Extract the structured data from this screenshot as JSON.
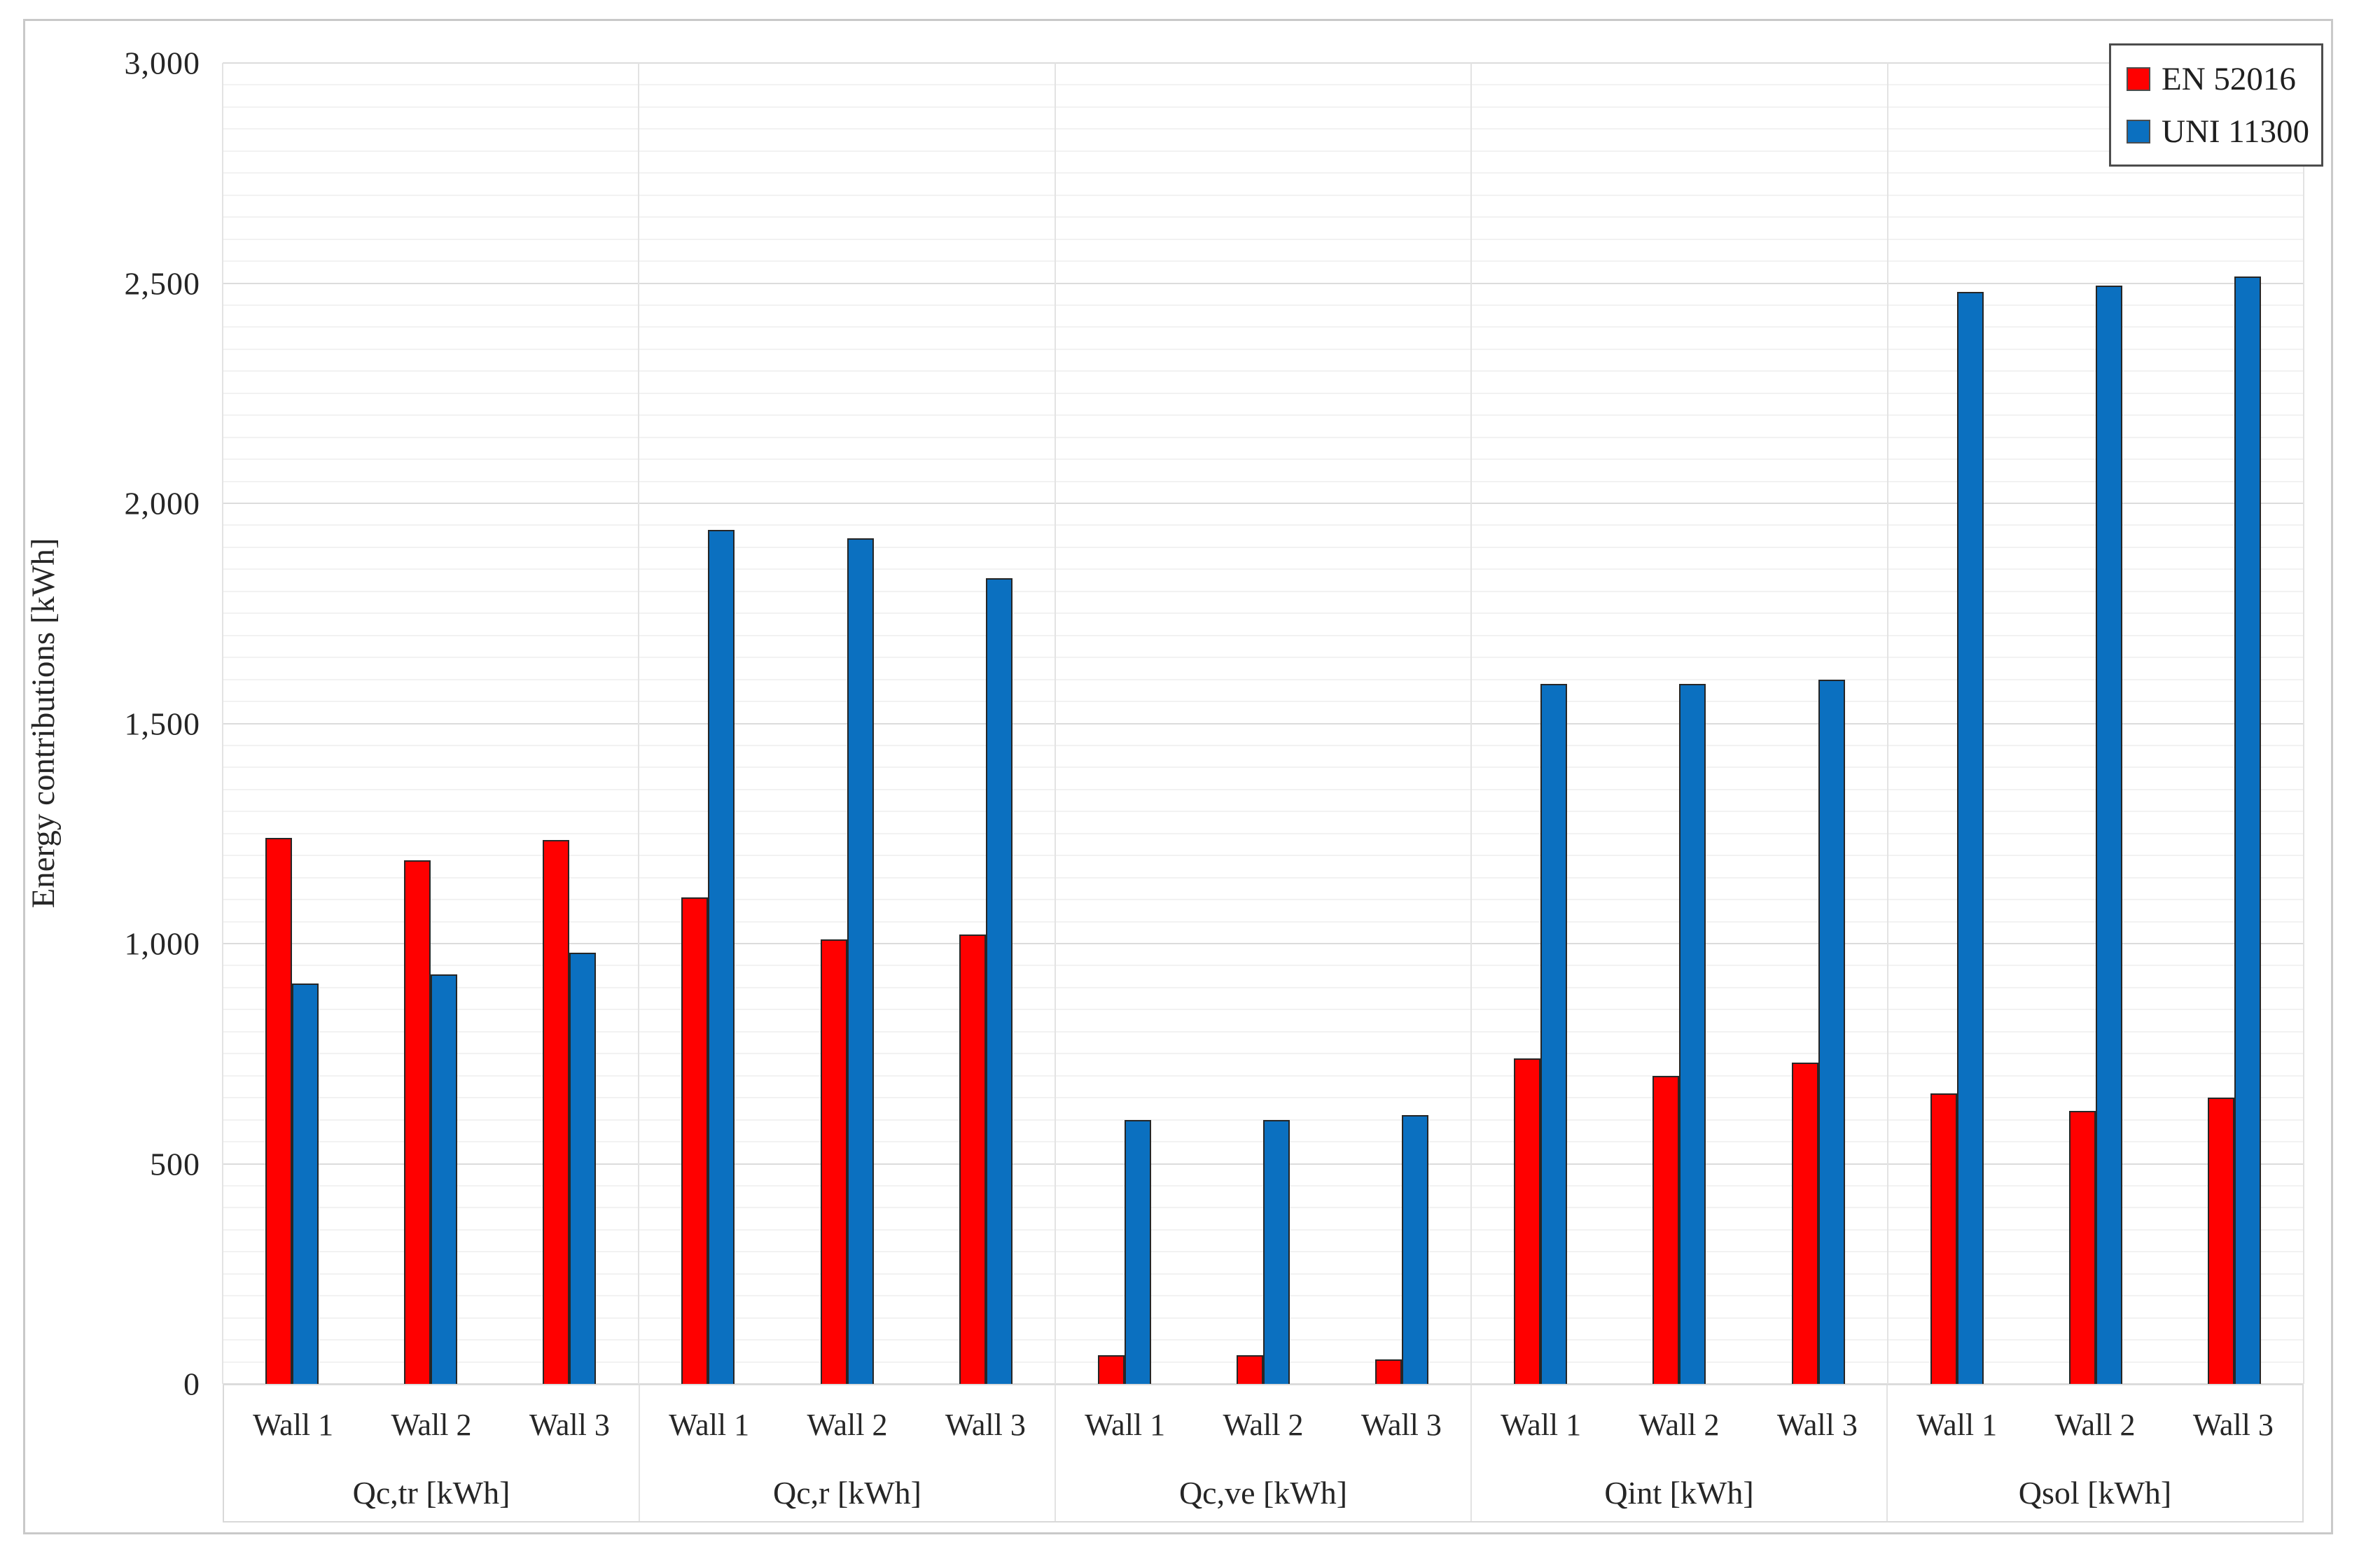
{
  "chart_data": {
    "type": "bar",
    "title": "",
    "ylabel": "Energy contributions [kWh]",
    "ylim": [
      0,
      3000
    ],
    "y_major_step": 500,
    "y_minor_step": 50,
    "y_tick_labels": [
      "0",
      "500",
      "1,000",
      "1,500",
      "2,000",
      "2,500",
      "3,000"
    ],
    "grid": "horizontal; faint minor lines every 50 kWh, light major lines every 500 kWh; faint vertical separators between category groups",
    "legend_position": "top-right",
    "categories": [
      "Qc,tr [kWh]",
      "Qc,r [kWh]",
      "Qc,ve [kWh]",
      "Qint [kWh]",
      "Qsol [kWh]"
    ],
    "walls": [
      "Wall 1",
      "Wall 2",
      "Wall 3"
    ],
    "series": [
      {
        "name": "EN 52016",
        "color": "#ff0000",
        "values": [
          [
            1240,
            1190,
            1235
          ],
          [
            1105,
            1010,
            1020
          ],
          [
            65,
            65,
            55
          ],
          [
            740,
            700,
            730
          ],
          [
            660,
            620,
            650
          ]
        ]
      },
      {
        "name": "UNI 11300",
        "color": "#0b70c0",
        "values": [
          [
            910,
            930,
            980
          ],
          [
            1940,
            1920,
            1830
          ],
          [
            600,
            600,
            610
          ],
          [
            1590,
            1590,
            1600
          ],
          [
            2480,
            2495,
            2515
          ]
        ]
      }
    ]
  }
}
